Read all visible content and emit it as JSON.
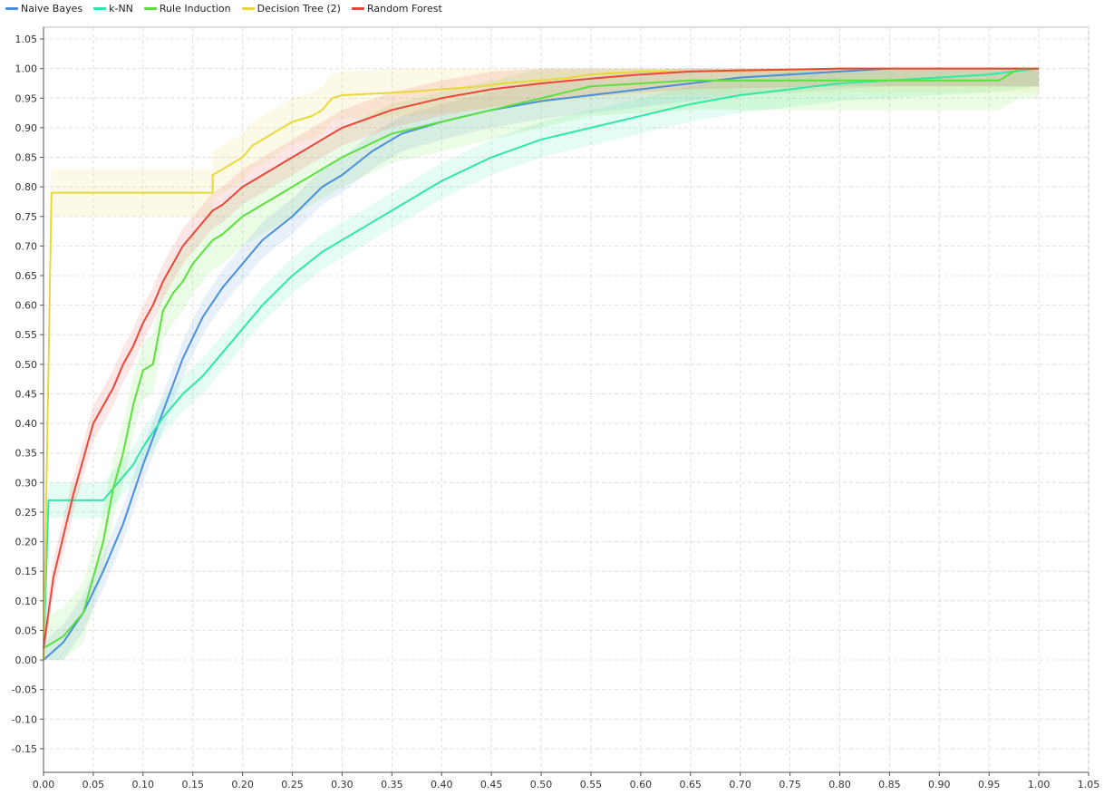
{
  "chart_data": {
    "type": "line",
    "title": "",
    "xlabel": "",
    "ylabel": "",
    "xlim": [
      0,
      1.05
    ],
    "ylim": [
      -0.19,
      1.07
    ],
    "grid": true,
    "legend_position": "top-left",
    "x_ticks": [
      "0.00",
      "0.05",
      "0.10",
      "0.15",
      "0.20",
      "0.25",
      "0.30",
      "0.35",
      "0.40",
      "0.45",
      "0.50",
      "0.55",
      "0.60",
      "0.65",
      "0.70",
      "0.75",
      "0.80",
      "0.85",
      "0.90",
      "0.95",
      "1.00",
      "1.05"
    ],
    "y_ticks": [
      "1.05",
      "1.00",
      "0.95",
      "0.90",
      "0.85",
      "0.80",
      "0.75",
      "0.70",
      "0.65",
      "0.60",
      "0.55",
      "0.50",
      "0.45",
      "0.40",
      "0.35",
      "0.30",
      "0.25",
      "0.20",
      "0.15",
      "0.10",
      "0.05",
      "0.00",
      "-0.05",
      "-0.10",
      "-0.15"
    ],
    "series": [
      {
        "name": "Naive Bayes",
        "color": "#4a90d9",
        "band_width": 0.03,
        "x": [
          0,
          0.02,
          0.04,
          0.06,
          0.08,
          0.1,
          0.12,
          0.14,
          0.16,
          0.18,
          0.2,
          0.22,
          0.25,
          0.28,
          0.3,
          0.33,
          0.36,
          0.4,
          0.45,
          0.5,
          0.55,
          0.6,
          0.65,
          0.7,
          0.75,
          0.8,
          0.85,
          0.9,
          0.95,
          1.0
        ],
        "y": [
          0,
          0.03,
          0.08,
          0.15,
          0.23,
          0.33,
          0.42,
          0.51,
          0.58,
          0.63,
          0.67,
          0.71,
          0.75,
          0.8,
          0.82,
          0.86,
          0.89,
          0.91,
          0.93,
          0.945,
          0.955,
          0.965,
          0.975,
          0.985,
          0.99,
          0.995,
          1.0,
          1.0,
          1.0,
          1.0
        ]
      },
      {
        "name": "k-NN",
        "color": "#2ee8a6",
        "band_width": 0.03,
        "x": [
          0,
          0.005,
          0.06,
          0.07,
          0.08,
          0.09,
          0.1,
          0.12,
          0.14,
          0.16,
          0.18,
          0.2,
          0.22,
          0.25,
          0.28,
          0.32,
          0.36,
          0.4,
          0.45,
          0.5,
          0.55,
          0.6,
          0.65,
          0.7,
          0.75,
          0.8,
          0.85,
          0.9,
          0.95,
          1.0
        ],
        "y": [
          0,
          0.27,
          0.27,
          0.29,
          0.31,
          0.33,
          0.36,
          0.41,
          0.45,
          0.48,
          0.52,
          0.56,
          0.6,
          0.65,
          0.69,
          0.73,
          0.77,
          0.81,
          0.85,
          0.88,
          0.9,
          0.92,
          0.94,
          0.955,
          0.965,
          0.975,
          0.98,
          0.985,
          0.99,
          1.0
        ]
      },
      {
        "name": "Rule Induction",
        "color": "#5be03d",
        "band_width": 0.05,
        "x": [
          0,
          0.02,
          0.04,
          0.06,
          0.07,
          0.08,
          0.09,
          0.1,
          0.11,
          0.12,
          0.13,
          0.14,
          0.15,
          0.16,
          0.17,
          0.18,
          0.2,
          0.22,
          0.25,
          0.28,
          0.3,
          0.35,
          0.4,
          0.45,
          0.5,
          0.55,
          0.6,
          0.65,
          0.7,
          0.8,
          0.9,
          0.96,
          0.98,
          1.0
        ],
        "y": [
          0.02,
          0.04,
          0.08,
          0.2,
          0.29,
          0.35,
          0.43,
          0.49,
          0.5,
          0.59,
          0.62,
          0.64,
          0.67,
          0.69,
          0.71,
          0.72,
          0.75,
          0.77,
          0.8,
          0.83,
          0.85,
          0.89,
          0.91,
          0.93,
          0.95,
          0.97,
          0.975,
          0.98,
          0.98,
          0.98,
          0.98,
          0.98,
          1.0,
          1.0
        ]
      },
      {
        "name": "Decision Tree (2)",
        "color": "#e8d83a",
        "band_width": 0.04,
        "x": [
          0,
          0.008,
          0.17,
          0.17,
          0.18,
          0.19,
          0.2,
          0.21,
          0.22,
          0.23,
          0.24,
          0.25,
          0.26,
          0.27,
          0.28,
          0.29,
          0.3,
          0.36,
          0.4,
          0.44,
          0.46,
          0.5,
          0.53,
          0.55,
          0.6,
          0.7,
          0.8,
          0.9,
          1.0
        ],
        "y": [
          0,
          0.79,
          0.79,
          0.82,
          0.83,
          0.84,
          0.85,
          0.87,
          0.88,
          0.89,
          0.9,
          0.91,
          0.915,
          0.92,
          0.93,
          0.95,
          0.955,
          0.96,
          0.965,
          0.97,
          0.975,
          0.98,
          0.985,
          0.99,
          0.995,
          0.995,
          1.0,
          1.0,
          1.0
        ]
      },
      {
        "name": "Random Forest",
        "color": "#e8473a",
        "band_width": 0.03,
        "x": [
          0,
          0.01,
          0.02,
          0.03,
          0.04,
          0.05,
          0.06,
          0.07,
          0.08,
          0.09,
          0.1,
          0.11,
          0.12,
          0.13,
          0.14,
          0.15,
          0.16,
          0.17,
          0.18,
          0.2,
          0.22,
          0.25,
          0.28,
          0.3,
          0.35,
          0.4,
          0.45,
          0.5,
          0.55,
          0.6,
          0.65,
          0.7,
          0.8,
          0.9,
          1.0
        ],
        "y": [
          0.02,
          0.14,
          0.21,
          0.28,
          0.34,
          0.4,
          0.43,
          0.46,
          0.5,
          0.53,
          0.57,
          0.6,
          0.64,
          0.67,
          0.7,
          0.72,
          0.74,
          0.76,
          0.77,
          0.8,
          0.82,
          0.85,
          0.88,
          0.9,
          0.93,
          0.95,
          0.965,
          0.975,
          0.983,
          0.99,
          0.995,
          0.997,
          1.0,
          1.0,
          1.0
        ]
      }
    ]
  }
}
